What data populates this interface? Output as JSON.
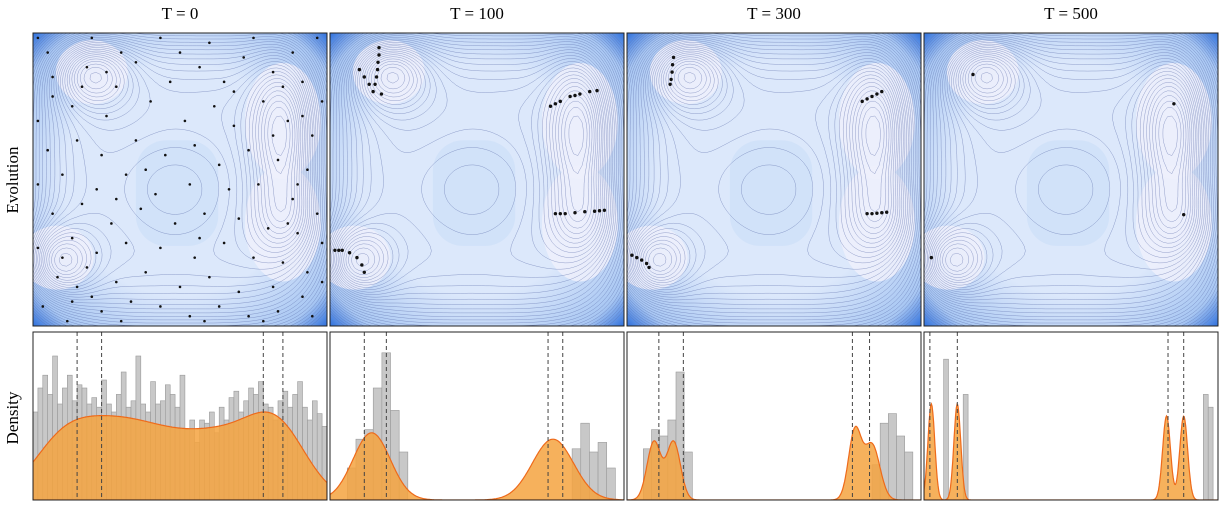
{
  "chart_data": [
    {
      "type": "scatter",
      "row_label": "Evolution",
      "panels": [
        {
          "title": "T = 0",
          "particles": [
            [
              -2.9,
              2.9
            ],
            [
              -2.7,
              2.6
            ],
            [
              -1.8,
              2.9
            ],
            [
              -1.2,
              2.6
            ],
            [
              -0.4,
              2.9
            ],
            [
              0.6,
              2.8
            ],
            [
              1.5,
              2.9
            ],
            [
              2.3,
              2.6
            ],
            [
              2.8,
              2.9
            ],
            [
              -2.6,
              2.1
            ],
            [
              -1.9,
              2.3
            ],
            [
              -1.3,
              1.9
            ],
            [
              -0.9,
              2.4
            ],
            [
              -0.2,
              2.0
            ],
            [
              0.4,
              2.3
            ],
            [
              0.9,
              2.0
            ],
            [
              1.3,
              2.5
            ],
            [
              1.9,
              2.2
            ],
            [
              2.5,
              2.0
            ],
            [
              2.9,
              1.6
            ],
            [
              -2.9,
              1.2
            ],
            [
              -2.2,
              1.5
            ],
            [
              -1.5,
              1.3
            ],
            [
              -0.6,
              1.6
            ],
            [
              0.1,
              1.2
            ],
            [
              0.7,
              1.5
            ],
            [
              1.1,
              1.1
            ],
            [
              1.7,
              1.6
            ],
            [
              2.2,
              1.2
            ],
            [
              2.7,
              0.9
            ],
            [
              -2.7,
              0.6
            ],
            [
              -2.1,
              0.8
            ],
            [
              -1.6,
              0.5
            ],
            [
              -0.9,
              0.8
            ],
            [
              -0.3,
              0.5
            ],
            [
              0.3,
              0.7
            ],
            [
              0.8,
              0.3
            ],
            [
              1.4,
              0.6
            ],
            [
              2.0,
              0.4
            ],
            [
              2.6,
              0.2
            ],
            [
              -2.9,
              -0.1
            ],
            [
              -2.4,
              0.1
            ],
            [
              -1.7,
              -0.2
            ],
            [
              -1.1,
              0.1
            ],
            [
              -0.5,
              -0.3
            ],
            [
              0.2,
              -0.1
            ],
            [
              1.0,
              -0.2
            ],
            [
              1.6,
              -0.1
            ],
            [
              2.3,
              -0.4
            ],
            [
              2.8,
              -0.7
            ],
            [
              -2.6,
              -0.7
            ],
            [
              -2.0,
              -0.5
            ],
            [
              -1.4,
              -0.9
            ],
            [
              -0.8,
              -0.6
            ],
            [
              -0.1,
              -0.9
            ],
            [
              0.5,
              -0.7
            ],
            [
              1.2,
              -0.8
            ],
            [
              1.8,
              -1.0
            ],
            [
              2.4,
              -1.1
            ],
            [
              2.9,
              -1.3
            ],
            [
              -2.9,
              -1.4
            ],
            [
              -2.2,
              -1.2
            ],
            [
              -1.7,
              -1.5
            ],
            [
              -1.1,
              -1.3
            ],
            [
              -0.4,
              -1.4
            ],
            [
              0.3,
              -1.6
            ],
            [
              0.9,
              -1.3
            ],
            [
              1.5,
              -1.6
            ],
            [
              2.1,
              -1.7
            ],
            [
              2.6,
              -1.9
            ],
            [
              -2.5,
              -2.0
            ],
            [
              -1.9,
              -1.8
            ],
            [
              -1.3,
              -2.1
            ],
            [
              -0.7,
              -1.9
            ],
            [
              0.0,
              -2.2
            ],
            [
              0.6,
              -2.0
            ],
            [
              1.2,
              -2.3
            ],
            [
              1.9,
              -2.2
            ],
            [
              2.5,
              -2.4
            ],
            [
              2.9,
              -2.1
            ],
            [
              -2.8,
              -2.6
            ],
            [
              -2.2,
              -2.5
            ],
            [
              -1.6,
              -2.7
            ],
            [
              -1.0,
              -2.5
            ],
            [
              -0.4,
              -2.6
            ],
            [
              0.2,
              -2.8
            ],
            [
              0.8,
              -2.6
            ],
            [
              1.4,
              -2.8
            ],
            [
              2.0,
              -2.7
            ],
            [
              2.7,
              -2.8
            ],
            [
              -2.3,
              -2.9
            ],
            [
              -1.2,
              -2.9
            ],
            [
              0.5,
              -2.9
            ],
            [
              1.7,
              -2.9
            ],
            [
              -2.0,
              1.9
            ],
            [
              -1.5,
              2.2
            ],
            [
              2.1,
              1.9
            ],
            [
              2.4,
              -0.1
            ],
            [
              2.2,
              -0.9
            ],
            [
              -2.4,
              -1.6
            ],
            [
              -2.1,
              -2.2
            ],
            [
              -1.8,
              -2.4
            ],
            [
              1.9,
              0.9
            ],
            [
              2.5,
              1.3
            ],
            [
              -1.3,
              -0.4
            ],
            [
              -0.7,
              0.2
            ],
            [
              0.4,
              -1.2
            ],
            [
              1.1,
              1.8
            ],
            [
              -2.6,
              1.7
            ],
            [
              0.0,
              2.6
            ]
          ]
        },
        {
          "title": "T = 100",
          "particles": [
            [
              -2.0,
              2.7
            ],
            [
              -2.0,
              2.55
            ],
            [
              -2.02,
              2.4
            ],
            [
              -2.03,
              2.25
            ],
            [
              -2.05,
              2.1
            ],
            [
              -2.08,
              1.95
            ],
            [
              -2.12,
              1.8
            ],
            [
              -2.2,
              1.95
            ],
            [
              -2.3,
              2.1
            ],
            [
              -2.4,
              2.25
            ],
            [
              -1.95,
              1.75
            ],
            [
              1.5,
              1.5
            ],
            [
              1.7,
              1.6
            ],
            [
              1.9,
              1.7
            ],
            [
              2.1,
              1.75
            ],
            [
              2.3,
              1.8
            ],
            [
              2.45,
              1.82
            ],
            [
              1.6,
              1.55
            ],
            [
              2.0,
              1.72
            ],
            [
              1.6,
              -0.7
            ],
            [
              1.8,
              -0.7
            ],
            [
              2.0,
              -0.68
            ],
            [
              2.2,
              -0.66
            ],
            [
              2.4,
              -0.65
            ],
            [
              2.6,
              -0.63
            ],
            [
              1.7,
              -0.7
            ],
            [
              2.5,
              -0.64
            ],
            [
              -2.9,
              -1.45
            ],
            [
              -2.75,
              -1.45
            ],
            [
              -2.6,
              -1.5
            ],
            [
              -2.45,
              -1.6
            ],
            [
              -2.35,
              -1.75
            ],
            [
              -2.3,
              -1.9
            ],
            [
              -2.82,
              -1.45
            ]
          ]
        },
        {
          "title": "T = 300",
          "particles": [
            [
              -2.05,
              2.5
            ],
            [
              -2.07,
              2.35
            ],
            [
              -2.08,
              2.2
            ],
            [
              -2.1,
              2.05
            ],
            [
              -2.12,
              1.95
            ],
            [
              1.8,
              1.6
            ],
            [
              1.9,
              1.65
            ],
            [
              2.0,
              1.7
            ],
            [
              2.1,
              1.75
            ],
            [
              2.2,
              1.8
            ],
            [
              1.9,
              -0.7
            ],
            [
              2.0,
              -0.7
            ],
            [
              2.1,
              -0.69
            ],
            [
              2.2,
              -0.68
            ],
            [
              2.3,
              -0.67
            ],
            [
              -2.9,
              -1.55
            ],
            [
              -2.8,
              -1.6
            ],
            [
              -2.7,
              -1.65
            ],
            [
              -2.6,
              -1.72
            ],
            [
              -2.55,
              -1.8
            ]
          ]
        },
        {
          "title": "T = 500",
          "particles": [
            [
              -2.0,
              2.15
            ],
            [
              2.1,
              1.55
            ],
            [
              2.3,
              -0.72
            ],
            [
              -2.85,
              -1.6
            ]
          ]
        }
      ],
      "minima": [
        [
          -1.8,
          2.2
        ],
        [
          2.1,
          1.2
        ],
        [
          2.1,
          -0.9
        ],
        [
          -2.5,
          -1.6
        ]
      ]
    },
    {
      "type": "histogram+density",
      "row_label": "Density",
      "xlim": [
        -3,
        3
      ],
      "bin_edges_start": -3,
      "bin_width": 0.2,
      "panels": [
        {
          "hist": [
            0.55,
            0.7,
            0.78,
            0.66,
            0.9,
            0.6,
            0.7,
            0.78,
            0.62,
            0.72,
            0.7,
            0.6,
            0.64,
            0.58,
            0.75,
            0.6,
            0.55,
            0.66,
            0.8,
            0.58,
            0.62,
            0.9,
            0.6,
            0.55,
            0.74,
            0.6,
            0.62,
            0.72,
            0.66,
            0.58,
            0.78,
            0.44,
            0.5,
            0.36,
            0.5,
            0.48,
            0.55,
            0.42,
            0.58,
            0.5,
            0.64,
            0.68,
            0.55,
            0.62,
            0.7,
            0.66,
            0.74,
            0.6,
            0.58,
            0.5,
            0.62,
            0.68,
            0.58,
            0.66,
            0.74,
            0.58,
            0.5,
            0.62,
            0.54,
            0.46
          ],
          "kde": [
            {
              "mu": -2.5,
              "sigma": 0.6,
              "w": 0.12
            },
            {
              "mu": -1.6,
              "sigma": 0.8,
              "w": 0.24
            },
            {
              "mu": -0.3,
              "sigma": 0.9,
              "w": 0.26
            },
            {
              "mu": 1.0,
              "sigma": 0.7,
              "w": 0.16
            },
            {
              "mu": 2.0,
              "sigma": 0.6,
              "w": 0.22
            }
          ],
          "dashed_lines": [
            -2.1,
            -1.6,
            1.7,
            2.1
          ]
        },
        {
          "hist": [
            0.0,
            0.0,
            0.2,
            0.38,
            0.44,
            0.7,
            0.92,
            0.56,
            0.3,
            0.0,
            0.0,
            0.0,
            0.0,
            0.0,
            0.0,
            0.0,
            0.0,
            0.0,
            0.0,
            0.0,
            0.0,
            0.0,
            0.0,
            0.0,
            0.0,
            0.0,
            0.0,
            0.0,
            0.32,
            0.48,
            0.3,
            0.36,
            0.2,
            0.0
          ],
          "kde": [
            {
              "mu": -2.15,
              "sigma": 0.38,
              "w": 0.5
            },
            {
              "mu": 1.55,
              "sigma": 0.42,
              "w": 0.5
            }
          ],
          "dashed_lines": [
            -2.3,
            -1.85,
            1.45,
            1.75
          ]
        },
        {
          "hist": [
            0.0,
            0.0,
            0.32,
            0.44,
            0.4,
            0.5,
            0.8,
            0.3,
            0.0,
            0.0,
            0.0,
            0.0,
            0.0,
            0.0,
            0.0,
            0.0,
            0.0,
            0.0,
            0.0,
            0.0,
            0.0,
            0.0,
            0.0,
            0.0,
            0.0,
            0.0,
            0.0,
            0.0,
            0.0,
            0.0,
            0.22,
            0.48,
            0.54,
            0.4,
            0.3,
            0.0
          ],
          "kde": [
            {
              "mu": -2.45,
              "sigma": 0.14,
              "w": 0.24
            },
            {
              "mu": -2.05,
              "sigma": 0.14,
              "w": 0.24
            },
            {
              "mu": 1.65,
              "sigma": 0.13,
              "w": 0.26
            },
            {
              "mu": 2.0,
              "sigma": 0.16,
              "w": 0.26
            }
          ],
          "dashed_lines": [
            -2.35,
            -1.85,
            1.6,
            1.95
          ]
        },
        {
          "hist": [
            0.0,
            0.0,
            0.0,
            0.0,
            0.88,
            0.0,
            0.0,
            0.0,
            0.66,
            0.0,
            0.0,
            0.0,
            0.0,
            0.0,
            0.0,
            0.0,
            0.0,
            0.0,
            0.0,
            0.0,
            0.0,
            0.0,
            0.0,
            0.0,
            0.0,
            0.0,
            0.0,
            0.0,
            0.0,
            0.0,
            0.0,
            0.0,
            0.0,
            0.0,
            0.0,
            0.0,
            0.0,
            0.0,
            0.0,
            0.0,
            0.0,
            0.0,
            0.0,
            0.0,
            0.0,
            0.0,
            0.0,
            0.0,
            0.0,
            0.0,
            0.0,
            0.0,
            0.0,
            0.0,
            0.0,
            0.0,
            0.0,
            0.66,
            0.58,
            0.0
          ],
          "kde": [
            {
              "mu": -2.85,
              "sigma": 0.07,
              "w": 0.25
            },
            {
              "mu": -2.32,
              "sigma": 0.07,
              "w": 0.25
            },
            {
              "mu": 1.95,
              "sigma": 0.08,
              "w": 0.25
            },
            {
              "mu": 2.3,
              "sigma": 0.08,
              "w": 0.25
            }
          ],
          "dashed_lines": [
            -2.88,
            -2.32,
            1.98,
            2.3
          ]
        }
      ]
    }
  ],
  "colors": {
    "contour_line": "#5a6ba8",
    "field_low": "#eef0fb",
    "field_high": "#1d63d8",
    "particle": "#111111",
    "hist_bar": "#c8c8c8",
    "kde_fill": "#f5a340",
    "kde_line": "#ee6a1a"
  }
}
